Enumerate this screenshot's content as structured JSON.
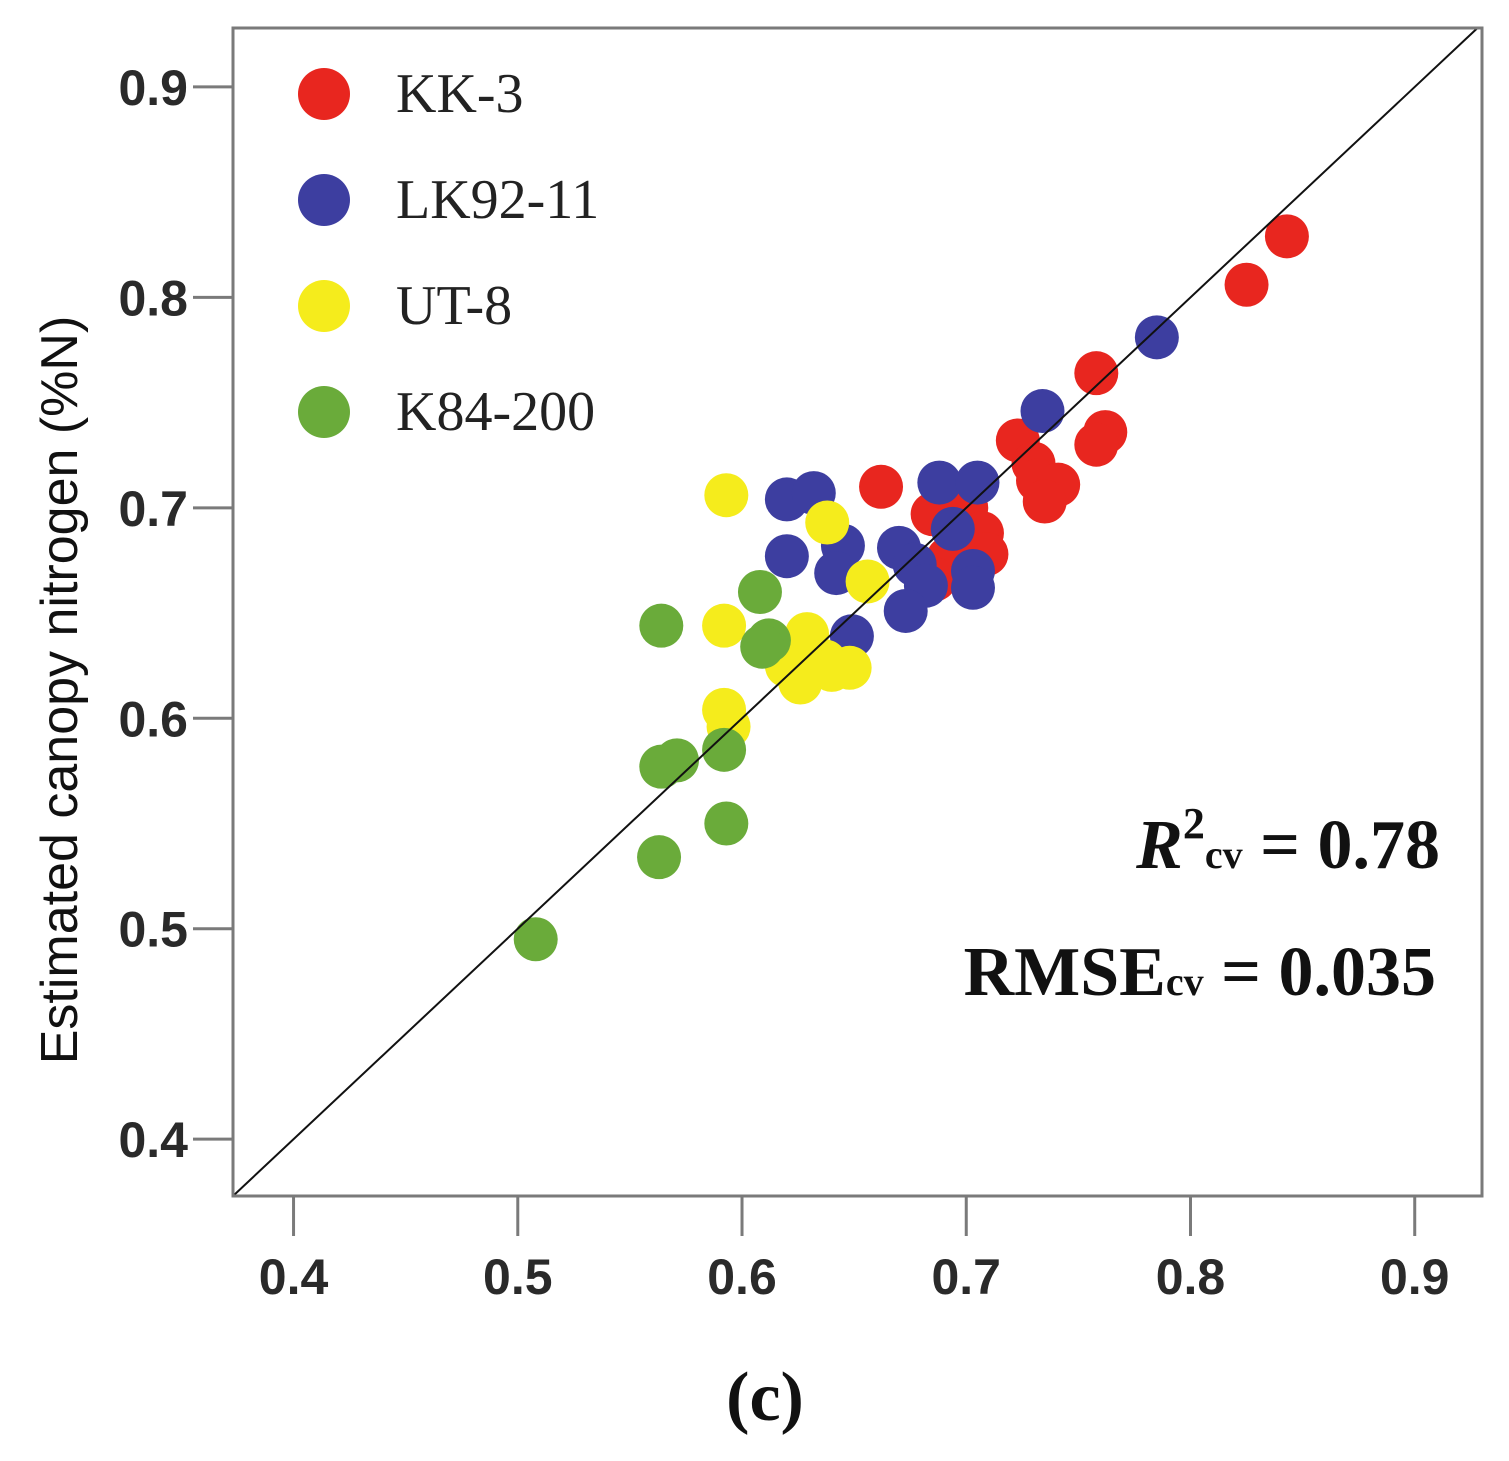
{
  "chart_data": {
    "type": "scatter",
    "title": "",
    "xlabel": "",
    "ylabel": "Estimated canopy nitrogen (%N)",
    "xlim": [
      0.373,
      0.93
    ],
    "ylim": [
      0.373,
      0.928
    ],
    "xticks": [
      "0.4",
      "0.5",
      "0.6",
      "0.7",
      "0.8",
      "0.9"
    ],
    "yticks": [
      "0.4",
      "0.5",
      "0.6",
      "0.7",
      "0.8",
      "0.9"
    ],
    "reference_line": "1:1",
    "legend_position": "top-left",
    "series": [
      {
        "name": "KK-3",
        "color": "#e8261f",
        "points": [
          [
            0.843,
            0.829
          ],
          [
            0.825,
            0.806
          ],
          [
            0.758,
            0.764
          ],
          [
            0.762,
            0.736
          ],
          [
            0.758,
            0.73
          ],
          [
            0.723,
            0.732
          ],
          [
            0.73,
            0.721
          ],
          [
            0.732,
            0.713
          ],
          [
            0.741,
            0.711
          ],
          [
            0.735,
            0.703
          ],
          [
            0.662,
            0.71
          ],
          [
            0.685,
            0.697
          ],
          [
            0.7,
            0.7
          ],
          [
            0.698,
            0.688
          ],
          [
            0.707,
            0.688
          ],
          [
            0.692,
            0.676
          ],
          [
            0.709,
            0.678
          ],
          [
            0.686,
            0.666
          ]
        ]
      },
      {
        "name": "LK92-11",
        "color": "#3d3ea0",
        "points": [
          [
            0.785,
            0.781
          ],
          [
            0.734,
            0.746
          ],
          [
            0.688,
            0.712
          ],
          [
            0.705,
            0.712
          ],
          [
            0.62,
            0.704
          ],
          [
            0.632,
            0.707
          ],
          [
            0.645,
            0.682
          ],
          [
            0.67,
            0.681
          ],
          [
            0.694,
            0.69
          ],
          [
            0.677,
            0.673
          ],
          [
            0.682,
            0.663
          ],
          [
            0.703,
            0.67
          ],
          [
            0.62,
            0.677
          ],
          [
            0.642,
            0.669
          ],
          [
            0.673,
            0.651
          ],
          [
            0.703,
            0.662
          ],
          [
            0.649,
            0.639
          ]
        ]
      },
      {
        "name": "UT-8",
        "color": "#f5ec1c",
        "points": [
          [
            0.593,
            0.706
          ],
          [
            0.638,
            0.693
          ],
          [
            0.656,
            0.665
          ],
          [
            0.592,
            0.644
          ],
          [
            0.629,
            0.64
          ],
          [
            0.62,
            0.625
          ],
          [
            0.637,
            0.627
          ],
          [
            0.648,
            0.624
          ],
          [
            0.626,
            0.617
          ],
          [
            0.64,
            0.623
          ],
          [
            0.592,
            0.604
          ],
          [
            0.594,
            0.596
          ]
        ]
      },
      {
        "name": "K84-200",
        "color": "#6aab3a",
        "points": [
          [
            0.608,
            0.66
          ],
          [
            0.564,
            0.644
          ],
          [
            0.612,
            0.637
          ],
          [
            0.609,
            0.634
          ],
          [
            0.564,
            0.577
          ],
          [
            0.571,
            0.58
          ],
          [
            0.592,
            0.585
          ],
          [
            0.593,
            0.55
          ],
          [
            0.563,
            0.534
          ],
          [
            0.508,
            0.495
          ]
        ]
      }
    ],
    "annotations": {
      "r2": {
        "symbol": "R",
        "superscript": "2",
        "subscript": "cv",
        "text": " = 0.78"
      },
      "rmse": {
        "symbol": "RMSE",
        "subscript": "cv",
        "text": " = 0.035"
      }
    },
    "panel_label": "(c)"
  }
}
